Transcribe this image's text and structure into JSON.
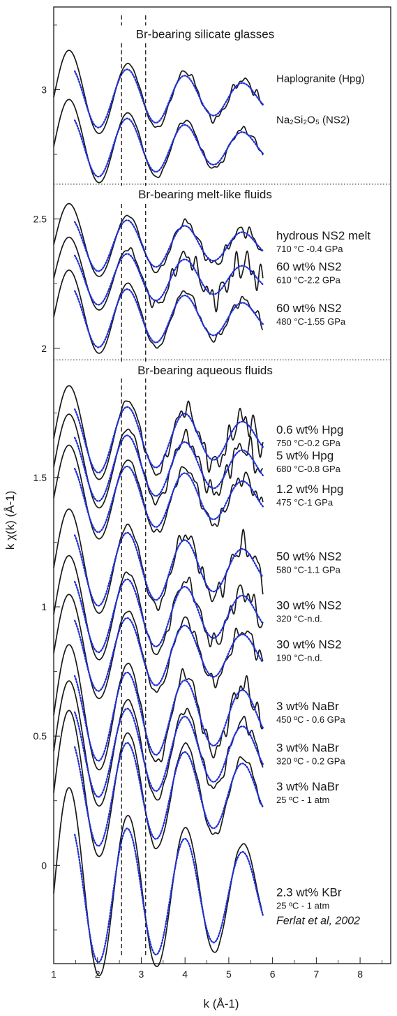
{
  "chart_data": {
    "type": "line",
    "xlabel": "k (Å-1)",
    "ylabel": "k χ(k) (Å-1)",
    "xlim": [
      1,
      8.7
    ],
    "ylim": [
      -0.38,
      3.32
    ],
    "x_ticks": [
      1,
      2,
      3,
      4,
      5,
      6,
      7,
      8
    ],
    "y_ticks": [
      0,
      0.5,
      1,
      1.5,
      2,
      2.5,
      3
    ],
    "y_tick_labels": [
      "0",
      "0.5",
      "1",
      "1.5",
      "2",
      "2.5",
      "3"
    ],
    "vertical_reference_lines": [
      2.55,
      3.1
    ],
    "section_dividers": [
      2.635,
      1.955
    ],
    "sections": [
      {
        "title": "Br-bearing silicate glasses",
        "title_y": 3.2
      },
      {
        "title": "Br-bearing melt-like fluids",
        "title_y": 2.58
      },
      {
        "title": "Br-bearing aqueous fluids",
        "title_y": 1.9
      }
    ],
    "line_colors": {
      "experimental": "#1a1a1a",
      "fit": "#1f2fd6"
    },
    "spectra": [
      {
        "label": "Haplogranite (Hpg)",
        "condition": "",
        "offset": 2.97,
        "amp": 0.08,
        "decay": 0.15,
        "noise": 0.3,
        "label_y": 3.03
      },
      {
        "label": "Na₂Si₂O₅ (NS2)",
        "condition": "",
        "offset": 2.78,
        "amp": 0.08,
        "decay": 0.15,
        "noise": 0.2,
        "label_y": 2.87
      },
      {
        "label": "hydrous NS2 melt",
        "condition": "710 °C -0.4 GPa",
        "offset": 2.4,
        "amp": 0.07,
        "decay": 0.15,
        "noise": 0.4,
        "label_y": 2.42
      },
      {
        "label": "60 wt% NS2",
        "condition": "610 °C-2.2 GPa",
        "offset": 2.27,
        "amp": 0.07,
        "decay": 0.15,
        "noise": 1.0,
        "label_y": 2.3
      },
      {
        "label": "60 wt% NS2",
        "condition": "480 °C-1.55 GPa",
        "offset": 2.12,
        "amp": 0.08,
        "decay": 0.15,
        "noise": 0.3,
        "label_y": 2.14
      },
      {
        "label": "0.6 wt% Hpg",
        "condition": "750 °C-0.2 GPa",
        "offset": 1.65,
        "amp": 0.09,
        "decay": 0.14,
        "noise": 0.9,
        "label_y": 1.67
      },
      {
        "label": "5 wt% Hpg",
        "condition": "680 °C-0.8 GPa",
        "offset": 1.54,
        "amp": 0.09,
        "decay": 0.14,
        "noise": 0.8,
        "label_y": 1.57
      },
      {
        "label": "1.2 wt% Hpg",
        "condition": "475 °C-1 GPa",
        "offset": 1.42,
        "amp": 0.09,
        "decay": 0.14,
        "noise": 0.5,
        "label_y": 1.44
      },
      {
        "label": "50 wt% NS2",
        "condition": "580 °C-1.1 GPa",
        "offset": 1.15,
        "amp": 0.1,
        "decay": 0.14,
        "noise": 0.8,
        "label_y": 1.18
      },
      {
        "label": "30 wt% NS2",
        "condition": "320 °C-n.d.",
        "offset": 0.97,
        "amp": 0.1,
        "decay": 0.14,
        "noise": 0.7,
        "label_y": 0.99
      },
      {
        "label": "30 wt% NS2",
        "condition": "190 °C-n.d.",
        "offset": 0.82,
        "amp": 0.1,
        "decay": 0.14,
        "noise": 0.5,
        "label_y": 0.84
      },
      {
        "label": "3 wt% NaBr",
        "condition": "450 ºC - 0.6 GPa",
        "offset": 0.58,
        "amp": 0.12,
        "decay": 0.12,
        "noise": 0.7,
        "label_y": 0.6
      },
      {
        "label": "3 wt% NaBr",
        "condition": "320 ºC - 0.2 GPa",
        "offset": 0.44,
        "amp": 0.12,
        "decay": 0.12,
        "noise": 0.4,
        "label_y": 0.44
      },
      {
        "label": "3 wt% NaBr",
        "condition": "25 ºC - 1 atm",
        "offset": 0.28,
        "amp": 0.14,
        "decay": 0.12,
        "noise": 0.2,
        "label_y": 0.29
      },
      {
        "label": "2.3 wt% KBr",
        "condition": "25 ºC - 1 atm",
        "offset": -0.11,
        "amp": 0.18,
        "decay": 0.1,
        "noise": 0.05,
        "label_y": -0.12
      }
    ],
    "annotation": "Ferlat et al, 2002"
  }
}
